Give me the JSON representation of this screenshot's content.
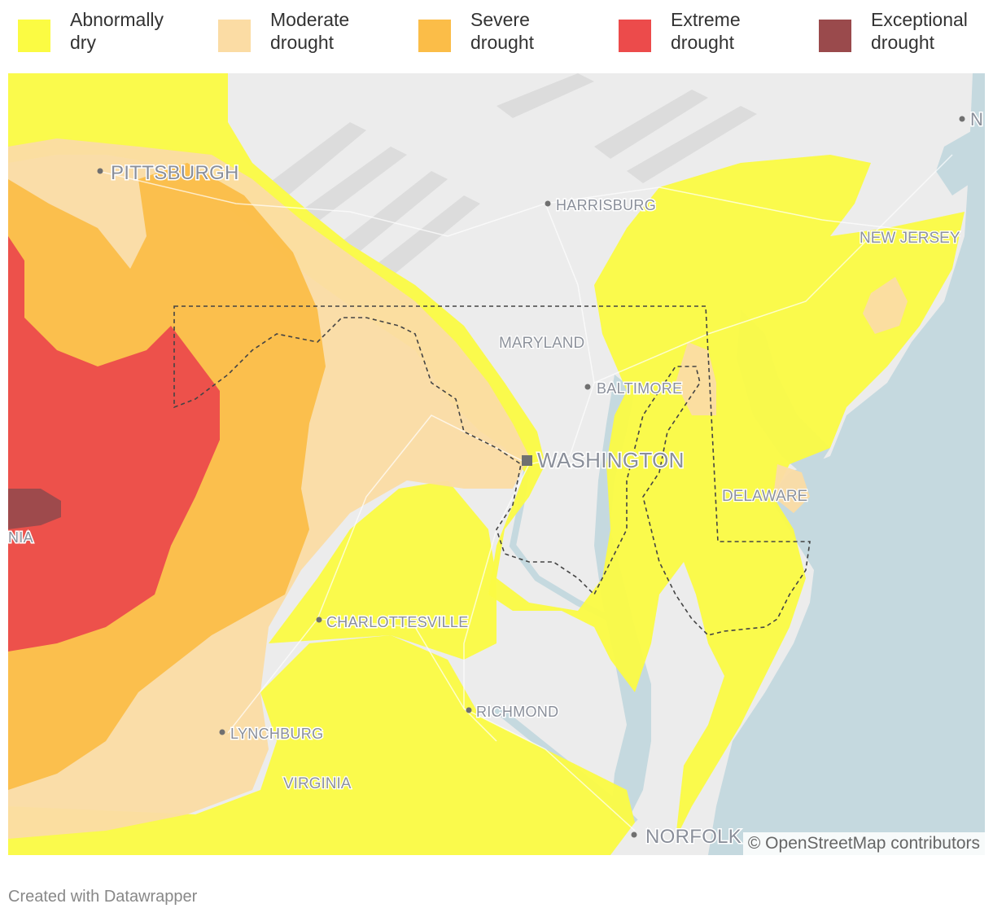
{
  "legend": [
    {
      "line1": "Abnormally",
      "line2": "dry",
      "color": "#fbfb43"
    },
    {
      "line1": "Moderate",
      "line2": "drought",
      "color": "#fbdca4"
    },
    {
      "line1": "Severe",
      "line2": "drought",
      "color": "#fbbd48"
    },
    {
      "line1": "Extreme",
      "line2": "drought",
      "color": "#ec4b4b"
    },
    {
      "line1": "Exceptional",
      "line2": "drought",
      "color": "#9a4a4c"
    }
  ],
  "places": {
    "pittsburgh": "PITTSBURGH",
    "harrisburg": "HARRISBURG",
    "new_jersey": "NEW JERSEY",
    "maryland": "MARYLAND",
    "baltimore": "BALTIMORE",
    "washington": "WASHINGTON",
    "delaware": "DELAWARE",
    "charlottesville": "CHARLOTTESVILLE",
    "richmond": "RICHMOND",
    "lynchburg": "LYNCHBURG",
    "virginia": "VIRGINIA",
    "norfolk": "NORFOLK",
    "west_virginia_fragment": "NIA",
    "new_york_fragment": "N"
  },
  "colors": {
    "land": "#ececec",
    "water": "#c5d9df",
    "roads": "#ffffff"
  },
  "attribution": "© OpenStreetMap contributors",
  "credit": "Created with Datawrapper"
}
